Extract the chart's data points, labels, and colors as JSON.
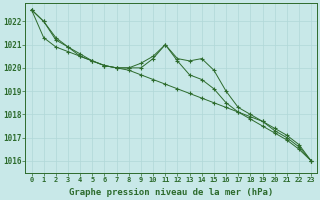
{
  "x": [
    0,
    1,
    2,
    3,
    4,
    5,
    6,
    7,
    8,
    9,
    10,
    11,
    12,
    13,
    14,
    15,
    16,
    17,
    18,
    19,
    20,
    21,
    22,
    23
  ],
  "s1": [
    1022.5,
    1022.0,
    1021.3,
    1020.9,
    1020.6,
    1020.3,
    1020.1,
    1020.0,
    1019.9,
    1019.7,
    1019.5,
    1019.3,
    1019.1,
    1018.9,
    1018.7,
    1018.5,
    1018.3,
    1018.1,
    1017.9,
    1017.7,
    1017.4,
    1017.1,
    1016.7,
    1016.0
  ],
  "s2": [
    1022.5,
    1022.0,
    1021.2,
    1020.9,
    1020.5,
    1020.3,
    1020.1,
    1020.0,
    1020.0,
    1020.0,
    1020.4,
    1021.0,
    1020.3,
    1019.7,
    1019.5,
    1019.1,
    1018.5,
    1018.1,
    1017.8,
    1017.5,
    1017.2,
    1016.9,
    1016.5,
    1016.0
  ],
  "s3": [
    1022.5,
    1021.3,
    1020.9,
    1020.7,
    1020.5,
    1020.3,
    1020.1,
    1020.0,
    1020.0,
    1020.2,
    1020.5,
    1021.0,
    1020.4,
    1020.3,
    1020.4,
    1019.9,
    1019.0,
    1018.3,
    1018.0,
    1017.7,
    1017.3,
    1017.0,
    1016.6,
    1016.0
  ],
  "line_color": "#2d6b2d",
  "bg_color": "#c8e8e8",
  "grid_color": "#b0d8d8",
  "xlabel": "Graphe pression niveau de la mer (hPa)",
  "ylim": [
    1015.5,
    1022.8
  ],
  "yticks": [
    1016,
    1017,
    1018,
    1019,
    1020,
    1021,
    1022
  ],
  "xticks": [
    0,
    1,
    2,
    3,
    4,
    5,
    6,
    7,
    8,
    9,
    10,
    11,
    12,
    13,
    14,
    15,
    16,
    17,
    18,
    19,
    20,
    21,
    22,
    23
  ]
}
